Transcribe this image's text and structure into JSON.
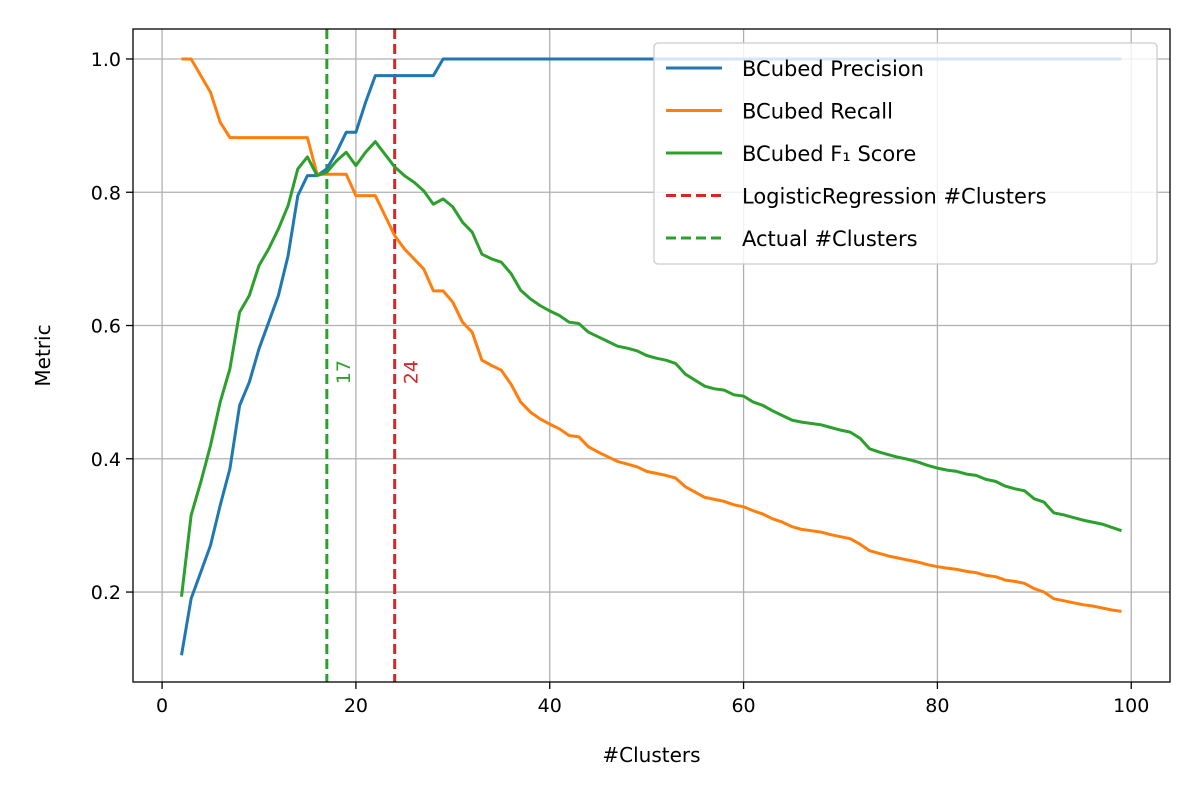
{
  "chart_data": {
    "type": "line",
    "xlabel": "#Clusters",
    "ylabel": "Metric",
    "xlim": [
      -3,
      104
    ],
    "ylim": [
      0.065,
      1.045
    ],
    "xticks": [
      0,
      20,
      40,
      60,
      80,
      100
    ],
    "yticks": [
      0.2,
      0.4,
      0.6,
      0.8,
      1.0
    ],
    "xtick_labels": [
      "0",
      "20",
      "40",
      "60",
      "80",
      "100"
    ],
    "ytick_labels": [
      "0.2",
      "0.4",
      "0.6",
      "0.8",
      "1.0"
    ],
    "grid": true,
    "legend_position": "top-right",
    "series": [
      {
        "name": "BCubed Precision",
        "color": "#1f77b4",
        "x": [
          2,
          3,
          4,
          5,
          6,
          7,
          8,
          9,
          10,
          11,
          12,
          13,
          14,
          15,
          16,
          17,
          18,
          19,
          20,
          21,
          22,
          23,
          24,
          25,
          26,
          27,
          28,
          29,
          30,
          35,
          40,
          50,
          60,
          70,
          80,
          90,
          99
        ],
        "y": [
          0.105,
          0.19,
          0.23,
          0.27,
          0.33,
          0.385,
          0.48,
          0.515,
          0.565,
          0.605,
          0.645,
          0.705,
          0.795,
          0.825,
          0.825,
          0.835,
          0.86,
          0.89,
          0.89,
          0.935,
          0.975,
          0.975,
          0.975,
          0.975,
          0.975,
          0.975,
          0.975,
          1.0,
          1.0,
          1.0,
          1.0,
          1.0,
          1.0,
          1.0,
          1.0,
          1.0,
          1.0
        ]
      },
      {
        "name": "BCubed Recall",
        "color": "#ff7f0e",
        "x": [
          2,
          3,
          4,
          5,
          6,
          7,
          8,
          9,
          10,
          11,
          12,
          13,
          14,
          15,
          16,
          17,
          18,
          19,
          20,
          21,
          22,
          23,
          24,
          25,
          26,
          27,
          28,
          29,
          30,
          31,
          32,
          33,
          34,
          35,
          36,
          37,
          38,
          39,
          40,
          41,
          42,
          43,
          44,
          45,
          46,
          47,
          48,
          49,
          50,
          51,
          52,
          53,
          54,
          55,
          56,
          57,
          58,
          59,
          60,
          61,
          62,
          63,
          64,
          65,
          66,
          67,
          68,
          69,
          70,
          71,
          72,
          73,
          74,
          75,
          76,
          77,
          78,
          79,
          80,
          81,
          82,
          83,
          84,
          85,
          86,
          87,
          88,
          89,
          90,
          91,
          92,
          93,
          94,
          95,
          96,
          97,
          98,
          99
        ],
        "y": [
          1.0,
          1.0,
          0.975,
          0.95,
          0.905,
          0.882,
          0.882,
          0.882,
          0.882,
          0.882,
          0.882,
          0.882,
          0.882,
          0.882,
          0.827,
          0.827,
          0.827,
          0.827,
          0.795,
          0.795,
          0.795,
          0.765,
          0.735,
          0.715,
          0.7,
          0.685,
          0.652,
          0.652,
          0.635,
          0.605,
          0.59,
          0.548,
          0.54,
          0.533,
          0.512,
          0.485,
          0.47,
          0.46,
          0.452,
          0.445,
          0.435,
          0.433,
          0.418,
          0.41,
          0.403,
          0.396,
          0.392,
          0.388,
          0.381,
          0.378,
          0.375,
          0.371,
          0.358,
          0.35,
          0.342,
          0.339,
          0.336,
          0.331,
          0.328,
          0.322,
          0.317,
          0.31,
          0.305,
          0.298,
          0.294,
          0.292,
          0.29,
          0.286,
          0.283,
          0.28,
          0.272,
          0.262,
          0.258,
          0.254,
          0.251,
          0.248,
          0.245,
          0.241,
          0.238,
          0.236,
          0.234,
          0.231,
          0.229,
          0.225,
          0.223,
          0.218,
          0.216,
          0.213,
          0.205,
          0.2,
          0.19,
          0.187,
          0.184,
          0.181,
          0.179,
          0.176,
          0.173,
          0.171
        ]
      },
      {
        "name": "BCubed F₁ Score",
        "color": "#2ca02c",
        "x": [
          2,
          3,
          4,
          5,
          6,
          7,
          8,
          9,
          10,
          11,
          12,
          13,
          14,
          15,
          16,
          17,
          18,
          19,
          20,
          21,
          22,
          23,
          24,
          25,
          26,
          27,
          28,
          29,
          30,
          31,
          32,
          33,
          34,
          35,
          36,
          37,
          38,
          39,
          40,
          41,
          42,
          43,
          44,
          45,
          46,
          47,
          48,
          49,
          50,
          51,
          52,
          53,
          54,
          55,
          56,
          57,
          58,
          59,
          60,
          61,
          62,
          63,
          64,
          65,
          66,
          67,
          68,
          69,
          70,
          71,
          72,
          73,
          74,
          75,
          76,
          77,
          78,
          79,
          80,
          81,
          82,
          83,
          84,
          85,
          86,
          87,
          88,
          89,
          90,
          91,
          92,
          93,
          94,
          95,
          96,
          97,
          98,
          99
        ],
        "y": [
          0.193,
          0.315,
          0.365,
          0.42,
          0.485,
          0.535,
          0.62,
          0.645,
          0.69,
          0.715,
          0.745,
          0.78,
          0.835,
          0.853,
          0.825,
          0.83,
          0.847,
          0.86,
          0.84,
          0.86,
          0.876,
          0.857,
          0.838,
          0.825,
          0.815,
          0.802,
          0.782,
          0.79,
          0.778,
          0.755,
          0.74,
          0.707,
          0.7,
          0.695,
          0.678,
          0.653,
          0.64,
          0.63,
          0.622,
          0.615,
          0.605,
          0.603,
          0.59,
          0.583,
          0.576,
          0.569,
          0.566,
          0.562,
          0.555,
          0.551,
          0.548,
          0.543,
          0.527,
          0.518,
          0.509,
          0.505,
          0.503,
          0.496,
          0.494,
          0.485,
          0.48,
          0.472,
          0.465,
          0.458,
          0.455,
          0.453,
          0.451,
          0.447,
          0.443,
          0.44,
          0.431,
          0.415,
          0.41,
          0.406,
          0.402,
          0.399,
          0.395,
          0.39,
          0.386,
          0.383,
          0.381,
          0.377,
          0.375,
          0.369,
          0.366,
          0.359,
          0.355,
          0.352,
          0.34,
          0.335,
          0.319,
          0.316,
          0.312,
          0.308,
          0.305,
          0.302,
          0.297,
          0.292
        ]
      }
    ],
    "vlines": [
      {
        "name": "LogisticRegression #Clusters",
        "x": 24,
        "label": "24",
        "color": "#d62728",
        "label_y": 0.53
      },
      {
        "name": "Actual #Clusters",
        "x": 17,
        "label": "17",
        "color": "#2ca02c",
        "label_y": 0.53
      }
    ],
    "legend": [
      {
        "label": "BCubed Precision",
        "color": "#1f77b4",
        "dashed": false
      },
      {
        "label": "BCubed Recall",
        "color": "#ff7f0e",
        "dashed": false
      },
      {
        "label": "BCubed F₁ Score",
        "color": "#2ca02c",
        "dashed": false
      },
      {
        "label": "LogisticRegression #Clusters",
        "color": "#d62728",
        "dashed": true
      },
      {
        "label": "Actual #Clusters",
        "color": "#2ca02c",
        "dashed": true
      }
    ]
  }
}
